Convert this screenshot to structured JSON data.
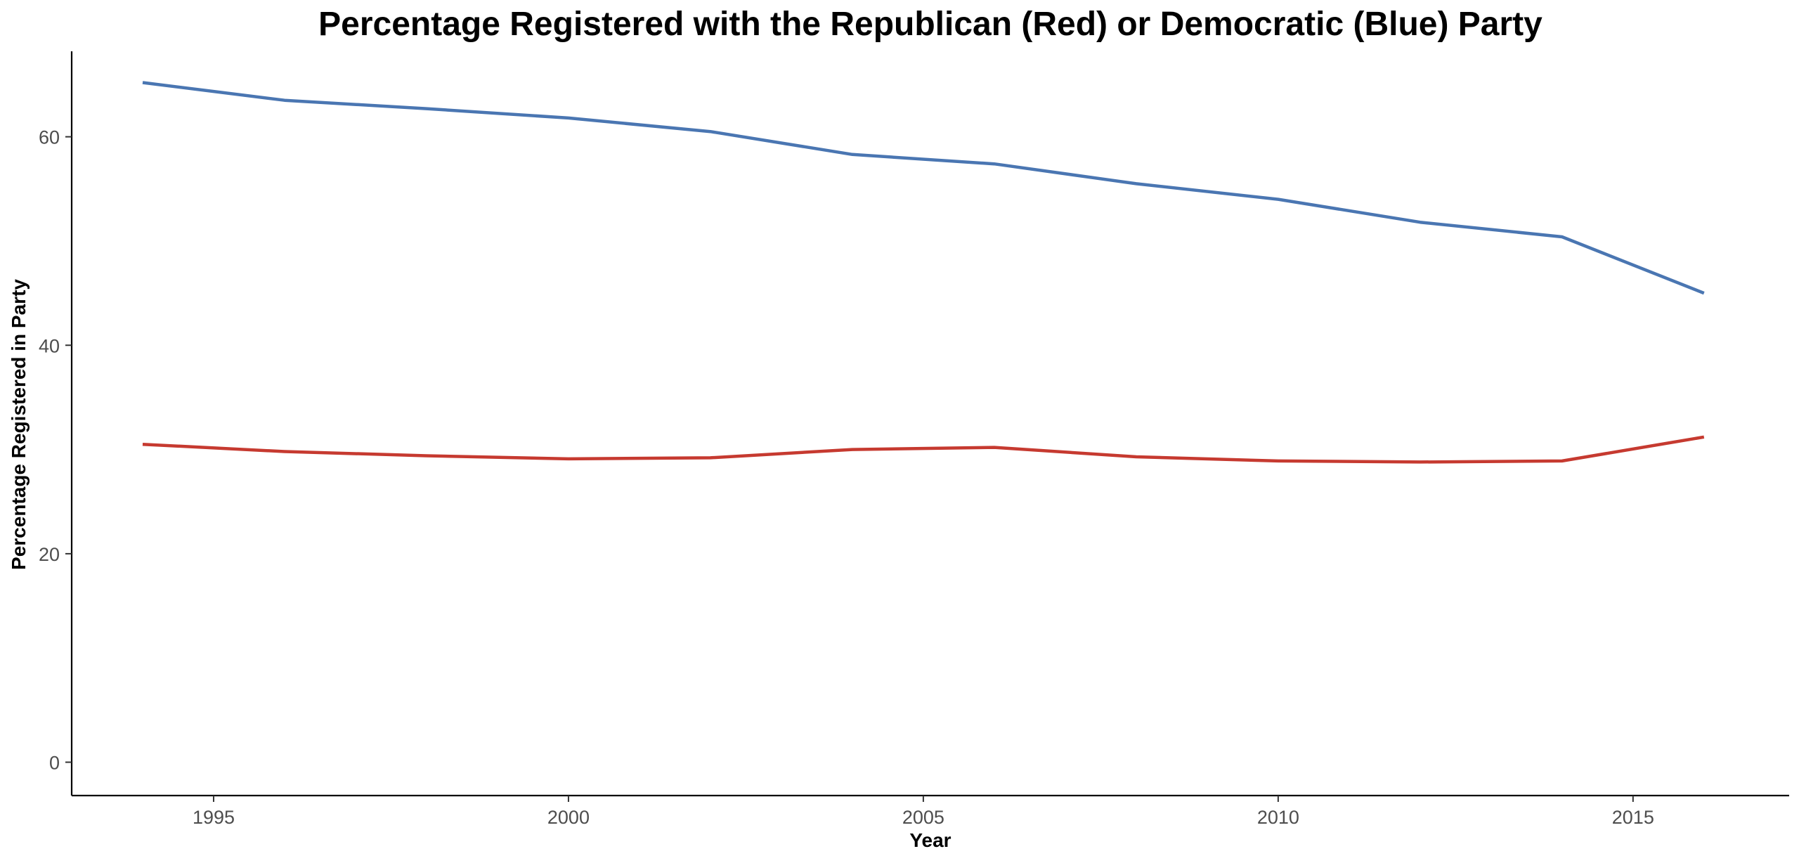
{
  "chart_data": {
    "type": "line",
    "title": "Percentage Registered with the Republican (Red) or Democratic (Blue) Party",
    "xlabel": "Year",
    "ylabel": "Percentage Registered in Party",
    "xlim": [
      1993.0,
      2017.2
    ],
    "ylim": [
      -3.2,
      68.2
    ],
    "x_ticks": [
      1995,
      2000,
      2005,
      2010,
      2015
    ],
    "y_ticks": [
      0,
      20,
      40,
      60
    ],
    "grid": false,
    "legend": "none",
    "x": [
      1994,
      1996,
      1998,
      2000,
      2002,
      2004,
      2006,
      2008,
      2010,
      2012,
      2014,
      2016
    ],
    "series": [
      {
        "color": "#4a76b2",
        "values": [
          65.2,
          63.5,
          62.7,
          61.8,
          60.5,
          58.3,
          57.4,
          55.5,
          54.0,
          51.8,
          50.4,
          45.0
        ]
      },
      {
        "color": "#c63a30",
        "values": [
          30.5,
          29.8,
          29.4,
          29.1,
          29.2,
          30.0,
          30.2,
          29.3,
          28.9,
          28.8,
          28.9,
          31.2
        ]
      }
    ]
  }
}
